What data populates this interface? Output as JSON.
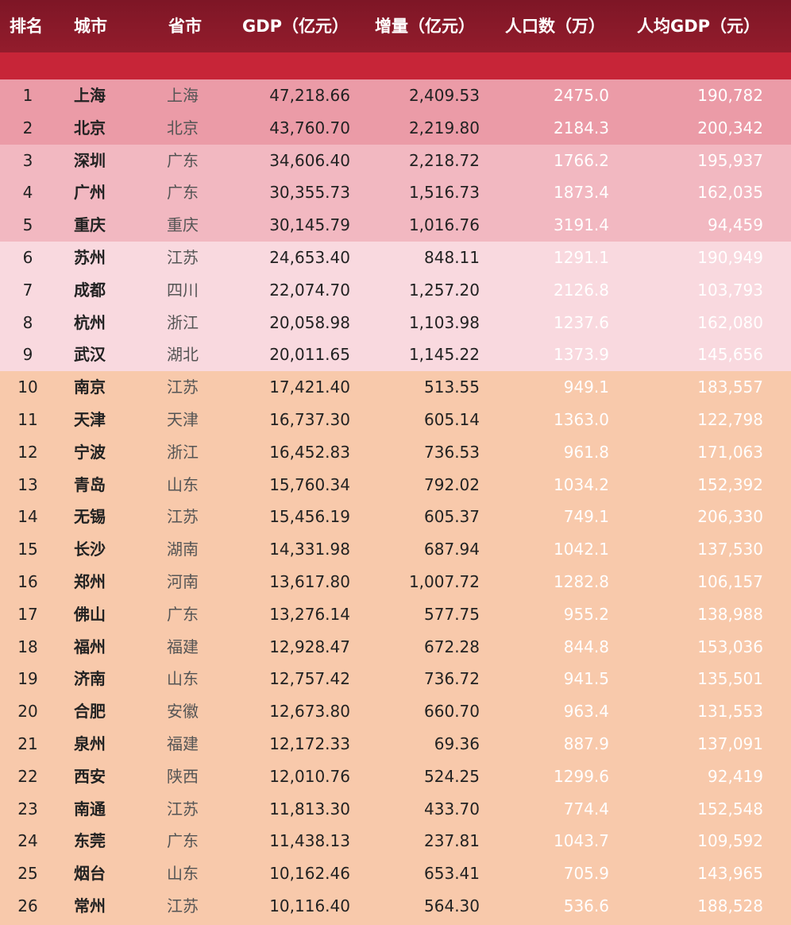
{
  "table": {
    "header": [
      "排名",
      "城市",
      "省市",
      "GDP（亿元）",
      "增量（亿元）",
      "人口数（万）",
      "人均GDP（元）"
    ],
    "rows": [
      [
        "1",
        "上海",
        "上海",
        "47,218.66",
        "2,409.53",
        "2475.0",
        "190,782"
      ],
      [
        "2",
        "北京",
        "北京",
        "43,760.70",
        "2,219.80",
        "2184.3",
        "200,342"
      ],
      [
        "3",
        "深圳",
        "广东",
        "34,606.40",
        "2,218.72",
        "1766.2",
        "195,937"
      ],
      [
        "4",
        "广州",
        "广东",
        "30,355.73",
        "1,516.73",
        "1873.4",
        "162,035"
      ],
      [
        "5",
        "重庆",
        "重庆",
        "30,145.79",
        "1,016.76",
        "3191.4",
        "94,459"
      ],
      [
        "6",
        "苏州",
        "江苏",
        "24,653.40",
        "848.11",
        "1291.1",
        "190,949"
      ],
      [
        "7",
        "成都",
        "四川",
        "22,074.70",
        "1,257.20",
        "2126.8",
        "103,793"
      ],
      [
        "8",
        "杭州",
        "浙江",
        "20,058.98",
        "1,103.98",
        "1237.6",
        "162,080"
      ],
      [
        "9",
        "武汉",
        "湖北",
        "20,011.65",
        "1,145.22",
        "1373.9",
        "145,656"
      ],
      [
        "10",
        "南京",
        "江苏",
        "17,421.40",
        "513.55",
        "949.1",
        "183,557"
      ],
      [
        "11",
        "天津",
        "天津",
        "16,737.30",
        "605.14",
        "1363.0",
        "122,798"
      ],
      [
        "12",
        "宁波",
        "浙江",
        "16,452.83",
        "736.53",
        "961.8",
        "171,063"
      ],
      [
        "13",
        "青岛",
        "山东",
        "15,760.34",
        "792.02",
        "1034.2",
        "152,392"
      ],
      [
        "14",
        "无锡",
        "江苏",
        "15,456.19",
        "605.37",
        "749.1",
        "206,330"
      ],
      [
        "15",
        "长沙",
        "湖南",
        "14,331.98",
        "687.94",
        "1042.1",
        "137,530"
      ],
      [
        "16",
        "郑州",
        "河南",
        "13,617.80",
        "1,007.72",
        "1282.8",
        "106,157"
      ],
      [
        "17",
        "佛山",
        "广东",
        "13,276.14",
        "577.75",
        "955.2",
        "138,988"
      ],
      [
        "18",
        "福州",
        "福建",
        "12,928.47",
        "672.28",
        "844.8",
        "153,036"
      ],
      [
        "19",
        "济南",
        "山东",
        "12,757.42",
        "736.72",
        "941.5",
        "135,501"
      ],
      [
        "20",
        "合肥",
        "安徽",
        "12,673.80",
        "660.70",
        "963.4",
        "131,553"
      ],
      [
        "21",
        "泉州",
        "福建",
        "12,172.33",
        "69.36",
        "887.9",
        "137,091"
      ],
      [
        "22",
        "西安",
        "陕西",
        "12,010.76",
        "524.25",
        "1299.6",
        "92,419"
      ],
      [
        "23",
        "南通",
        "江苏",
        "11,813.30",
        "433.70",
        "774.4",
        "152,548"
      ],
      [
        "24",
        "东莞",
        "广东",
        "11,438.13",
        "237.81",
        "1043.7",
        "109,592"
      ],
      [
        "25",
        "烟台",
        "山东",
        "10,162.46",
        "653.41",
        "705.9",
        "143,965"
      ],
      [
        "26",
        "常州",
        "江苏",
        "10,116.40",
        "564.30",
        "536.6",
        "188,528"
      ]
    ]
  }
}
